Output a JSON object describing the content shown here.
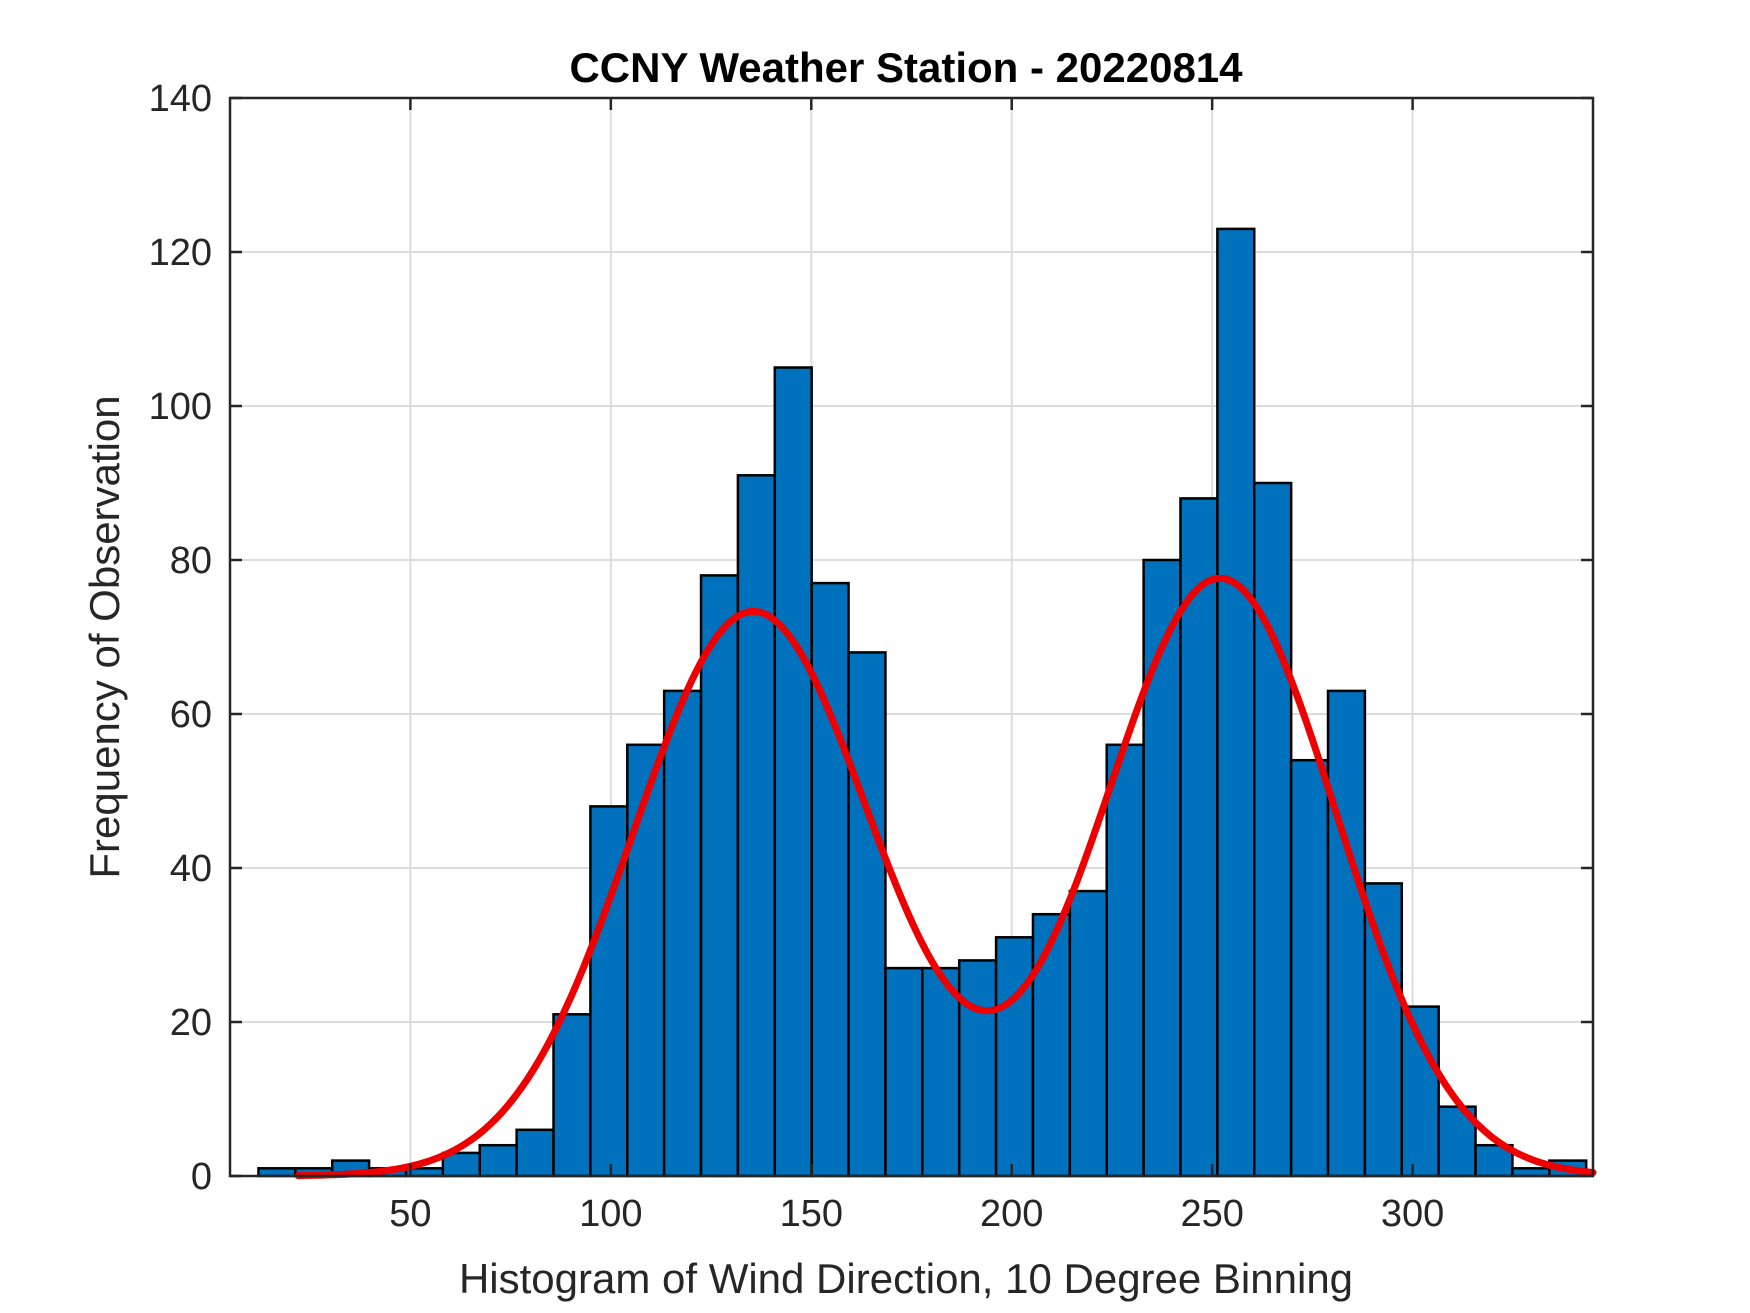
{
  "chart_data": {
    "type": "bar",
    "title": "CCNY Weather Station - 20220814",
    "xlabel": "Histogram of Wind Direction, 10 Degree Binning",
    "ylabel": "Frequency of Observation",
    "xlim": [
      5,
      345
    ],
    "ylim": [
      0,
      140
    ],
    "xticks": [
      50,
      100,
      150,
      200,
      250,
      300
    ],
    "yticks": [
      0,
      20,
      40,
      60,
      80,
      100,
      120,
      140
    ],
    "grid": true,
    "bin_width": 9.2,
    "bins": [
      {
        "left": 12.1,
        "count": 1
      },
      {
        "left": 21.3,
        "count": 1
      },
      {
        "left": 30.5,
        "count": 2
      },
      {
        "left": 39.7,
        "count": 1
      },
      {
        "left": 48.9,
        "count": 1
      },
      {
        "left": 58.1,
        "count": 3
      },
      {
        "left": 67.3,
        "count": 4
      },
      {
        "left": 76.5,
        "count": 6
      },
      {
        "left": 85.7,
        "count": 21
      },
      {
        "left": 94.9,
        "count": 48
      },
      {
        "left": 104.1,
        "count": 56
      },
      {
        "left": 113.3,
        "count": 63
      },
      {
        "left": 122.5,
        "count": 78
      },
      {
        "left": 131.7,
        "count": 91
      },
      {
        "left": 140.9,
        "count": 105
      },
      {
        "left": 150.1,
        "count": 77
      },
      {
        "left": 159.3,
        "count": 68
      },
      {
        "left": 168.5,
        "count": 27
      },
      {
        "left": 177.7,
        "count": 27
      },
      {
        "left": 186.9,
        "count": 28
      },
      {
        "left": 196.1,
        "count": 31
      },
      {
        "left": 205.3,
        "count": 34
      },
      {
        "left": 214.5,
        "count": 37
      },
      {
        "left": 223.7,
        "count": 56
      },
      {
        "left": 232.9,
        "count": 80
      },
      {
        "left": 242.1,
        "count": 88
      },
      {
        "left": 251.3,
        "count": 123
      },
      {
        "left": 260.5,
        "count": 90
      },
      {
        "left": 269.7,
        "count": 54
      },
      {
        "left": 278.9,
        "count": 63
      },
      {
        "left": 288.1,
        "count": 38
      },
      {
        "left": 297.3,
        "count": 22
      },
      {
        "left": 306.5,
        "count": 9
      },
      {
        "left": 315.7,
        "count": 4
      },
      {
        "left": 324.9,
        "count": 1
      },
      {
        "left": 334.1,
        "count": 2
      }
    ],
    "fit": {
      "type": "two-component gaussian",
      "x_range": [
        22,
        345
      ],
      "components": [
        {
          "amplitude": 73.3,
          "mean": 135.5,
          "sigma": 30
        },
        {
          "amplitude": 77.6,
          "mean": 252,
          "sigma": 29
        }
      ]
    },
    "colors": {
      "bar_fill": "#0072BD",
      "fit_line": "#EE0000"
    }
  }
}
